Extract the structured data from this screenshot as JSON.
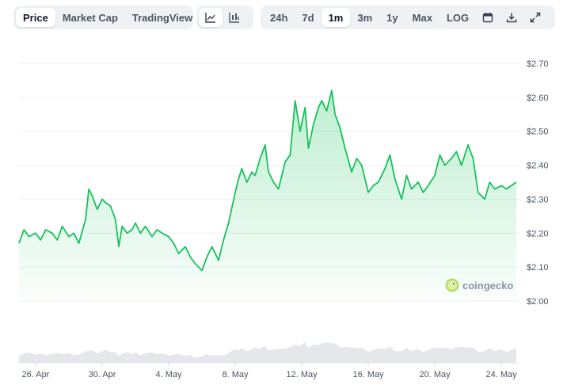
{
  "tabs": {
    "view": [
      {
        "label": "Price",
        "active": true
      },
      {
        "label": "Market Cap",
        "active": false
      },
      {
        "label": "TradingView",
        "active": false
      }
    ],
    "chart_type_icons": [
      "line-chart-icon",
      "candlestick-chart-icon"
    ],
    "ranges": [
      {
        "label": "24h",
        "active": false
      },
      {
        "label": "7d",
        "active": false
      },
      {
        "label": "1m",
        "active": true
      },
      {
        "label": "3m",
        "active": false
      },
      {
        "label": "1y",
        "active": false
      },
      {
        "label": "Max",
        "active": false
      },
      {
        "label": "LOG",
        "active": false
      }
    ],
    "tool_icons": [
      "calendar-icon",
      "download-icon",
      "expand-icon"
    ]
  },
  "watermark": {
    "text": "coingecko"
  },
  "colors": {
    "line": "#16c25a",
    "accent_gray": "#eff2f5",
    "volume": "#e5e7eb"
  },
  "chart_data": {
    "type": "area",
    "x_start": "25 Apr",
    "x_end": "24 May",
    "x_tick_labels": [
      "26. Apr",
      "30. Apr",
      "4. May",
      "8. May",
      "12. May",
      "16. May",
      "20. May",
      "24. May"
    ],
    "x_tick_days": [
      1,
      5,
      9,
      13,
      17,
      21,
      25,
      29
    ],
    "y_tick_labels": [
      "$2.00",
      "$2.10",
      "$2.20",
      "$2.30",
      "$2.40",
      "$2.50",
      "$2.60",
      "$2.70"
    ],
    "y_tick_values": [
      2.0,
      2.1,
      2.2,
      2.3,
      2.4,
      2.5,
      2.6,
      2.7
    ],
    "ylim": [
      2.0,
      2.7
    ],
    "grid": true,
    "series": [
      {
        "days": [
          0,
          0.3,
          0.6,
          1.0,
          1.3,
          1.6,
          2.0,
          2.3,
          2.6,
          3.0,
          3.3,
          3.6,
          4.0,
          4.2,
          4.4,
          4.7,
          5.0,
          5.2,
          5.5,
          5.8,
          6.0,
          6.2,
          6.5,
          6.8,
          7.0,
          7.3,
          7.6,
          8.0,
          8.3,
          8.6,
          9.0,
          9.3,
          9.6,
          10.0,
          10.3,
          10.6,
          11.0,
          11.3,
          11.6,
          12.0,
          12.3,
          12.6,
          13.0,
          13.2,
          13.4,
          13.7,
          14.0,
          14.2,
          14.5,
          14.8,
          15.0,
          15.3,
          15.6,
          16.0,
          16.3,
          16.6,
          16.9,
          17.2,
          17.4,
          17.7,
          18.0,
          18.2,
          18.5,
          18.8,
          19.0,
          19.3,
          19.6,
          20.0,
          20.3,
          20.6,
          21.0,
          21.3,
          21.6,
          22.0,
          22.3,
          22.6,
          23.0,
          23.3,
          23.6,
          24.0,
          24.3,
          24.6,
          25.0,
          25.3,
          25.6,
          26.0,
          26.3,
          26.6,
          27.0,
          27.3,
          27.6,
          28.0,
          28.3,
          28.6,
          29.0,
          29.3,
          29.6,
          29.9
        ],
        "values": [
          2.17,
          2.21,
          2.19,
          2.2,
          2.18,
          2.21,
          2.2,
          2.18,
          2.22,
          2.19,
          2.2,
          2.17,
          2.24,
          2.33,
          2.31,
          2.27,
          2.3,
          2.29,
          2.28,
          2.24,
          2.16,
          2.22,
          2.2,
          2.21,
          2.23,
          2.2,
          2.22,
          2.19,
          2.21,
          2.2,
          2.19,
          2.17,
          2.14,
          2.16,
          2.13,
          2.11,
          2.09,
          2.13,
          2.16,
          2.12,
          2.18,
          2.23,
          2.32,
          2.36,
          2.39,
          2.35,
          2.38,
          2.37,
          2.42,
          2.46,
          2.38,
          2.35,
          2.33,
          2.41,
          2.43,
          2.59,
          2.5,
          2.57,
          2.45,
          2.52,
          2.57,
          2.59,
          2.56,
          2.62,
          2.55,
          2.51,
          2.45,
          2.38,
          2.42,
          2.4,
          2.32,
          2.34,
          2.35,
          2.39,
          2.43,
          2.36,
          2.3,
          2.37,
          2.33,
          2.35,
          2.32,
          2.34,
          2.37,
          2.43,
          2.4,
          2.42,
          2.44,
          2.4,
          2.46,
          2.42,
          2.32,
          2.3,
          2.35,
          2.33,
          2.34,
          2.33,
          2.34,
          2.35
        ]
      }
    ]
  }
}
